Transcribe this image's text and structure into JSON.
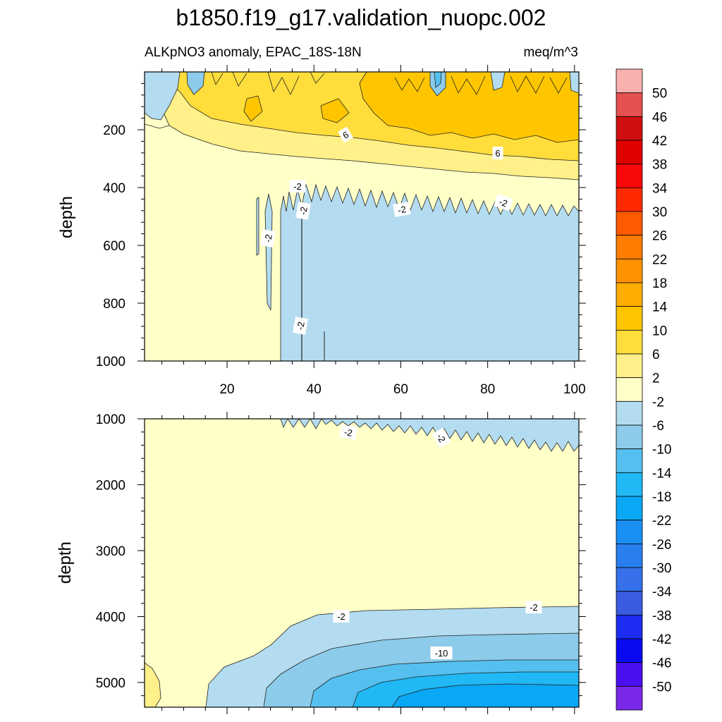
{
  "chart_data": {
    "type": "contour",
    "title": "b1850.f19_g17.validation_nuopc.002",
    "subtitle_left": "ALKpNO3 anomaly, EPAC_18S-18N",
    "subtitle_right": "meq/m^3",
    "x_ticks": [
      "20",
      "40",
      "60",
      "80",
      "100"
    ],
    "xlim": [
      1,
      101
    ],
    "panels": [
      {
        "name": "upper",
        "ylabel": "depth",
        "ylim": [
          0,
          1000
        ],
        "y_ticks": [
          "200",
          "400",
          "600",
          "800",
          "1000"
        ],
        "contour_labels": [
          "6",
          "6",
          "-2",
          "-2",
          "-2",
          "-2",
          "-2",
          "-2"
        ]
      },
      {
        "name": "lower",
        "ylabel": "depth",
        "ylim": [
          1000,
          5375
        ],
        "y_ticks": [
          "1000",
          "2000",
          "3000",
          "4000",
          "5000"
        ],
        "contour_labels": [
          "-2",
          "-2",
          "-2",
          "-2",
          "-10"
        ]
      }
    ],
    "colorbar": {
      "levels": [
        "50",
        "46",
        "42",
        "38",
        "34",
        "30",
        "26",
        "22",
        "18",
        "14",
        "10",
        "6",
        "2",
        "-2",
        "-6",
        "-10",
        "-14",
        "-18",
        "-22",
        "-26",
        "-30",
        "-34",
        "-38",
        "-42",
        "-46",
        "-50"
      ],
      "colors": [
        "#fbb0b0",
        "#e65050",
        "#d01010",
        "#e00000",
        "#f80808",
        "#ff2a00",
        "#ff5a00",
        "#ff7c00",
        "#ff9200",
        "#ffac00",
        "#ffc600",
        "#ffdd3a",
        "#fff08a",
        "#ffffc8",
        "#b4dcf0",
        "#8ccbe9",
        "#55c0f0",
        "#20b8f5",
        "#0aa7f5",
        "#1a90f5",
        "#2a7ff0",
        "#3670ea",
        "#3a5ce0",
        "#1c2cf0",
        "#0a0af0",
        "#4a10f0",
        "#7a28e8"
      ]
    }
  }
}
